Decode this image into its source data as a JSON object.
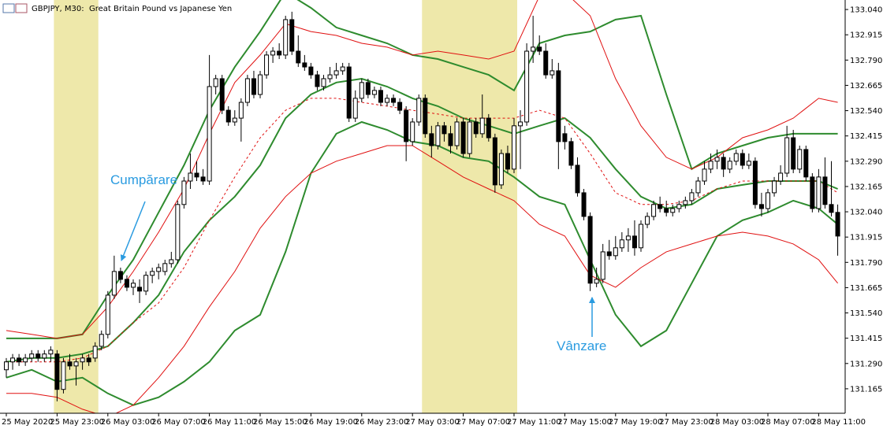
{
  "chart_data": {
    "type": "candlestick",
    "title": "GBPJPY, M30:  Great Britain Pound vs Japanese Yen",
    "categories": [
      "25 May 2020",
      null,
      null,
      null,
      null,
      null,
      null,
      null,
      "25 May 23:00",
      null,
      null,
      null,
      null,
      null,
      null,
      null,
      "26 May 03:00",
      null,
      null,
      null,
      null,
      null,
      null,
      null,
      "26 May 07:00",
      null,
      null,
      null,
      null,
      null,
      null,
      null,
      "26 May 11:00",
      null,
      null,
      null,
      null,
      null,
      null,
      null,
      "26 May 15:00",
      null,
      null,
      null,
      null,
      null,
      null,
      null,
      "26 May 19:00",
      null,
      null,
      null,
      null,
      null,
      null,
      null,
      "26 May 23:00",
      null,
      null,
      null,
      null,
      null,
      null,
      null,
      "27 May 03:00",
      null,
      null,
      null,
      null,
      null,
      null,
      null,
      "27 May 07:00",
      null,
      null,
      null,
      null,
      null,
      null,
      null,
      "27 May 11:00",
      null,
      null,
      null,
      null,
      null,
      null,
      null,
      "27 May 15:00",
      null,
      null,
      null,
      null,
      null,
      null,
      null,
      "27 May 19:00",
      null,
      null,
      null,
      null,
      null,
      null,
      null,
      "27 May 23:00",
      null,
      null,
      null,
      null,
      null,
      null,
      null,
      "28 May 03:00",
      null,
      null,
      null,
      null,
      null,
      null,
      null,
      "28 May 07:00",
      null,
      null,
      null,
      null,
      null,
      null,
      null,
      "28 May 11:00",
      null,
      null,
      null
    ],
    "ohlc": [
      [
        131.259,
        131.317,
        131.22,
        131.298
      ],
      [
        131.298,
        131.337,
        131.259,
        131.317
      ],
      [
        131.317,
        131.337,
        131.278,
        131.298
      ],
      [
        131.298,
        131.337,
        131.278,
        131.317
      ],
      [
        131.317,
        131.356,
        131.298,
        131.337
      ],
      [
        131.337,
        131.356,
        131.298,
        131.317
      ],
      [
        131.317,
        131.356,
        131.298,
        131.337
      ],
      [
        131.337,
        131.375,
        131.298,
        131.356
      ],
      [
        131.337,
        131.356,
        131.103,
        131.162
      ],
      [
        131.162,
        131.317,
        131.142,
        131.298
      ],
      [
        131.298,
        131.337,
        131.259,
        131.278
      ],
      [
        131.278,
        131.317,
        131.181,
        131.298
      ],
      [
        131.298,
        131.337,
        131.259,
        131.317
      ],
      [
        131.317,
        131.337,
        131.278,
        131.298
      ],
      [
        131.317,
        131.395,
        131.298,
        131.375
      ],
      [
        131.375,
        131.453,
        131.356,
        131.434
      ],
      [
        131.434,
        131.648,
        131.414,
        131.628
      ],
      [
        131.628,
        131.823,
        131.609,
        131.745
      ],
      [
        131.745,
        131.764,
        131.687,
        131.706
      ],
      [
        131.706,
        131.726,
        131.648,
        131.667
      ],
      [
        131.667,
        131.706,
        131.628,
        131.687
      ],
      [
        131.667,
        131.706,
        131.589,
        131.648
      ],
      [
        131.648,
        131.745,
        131.628,
        131.726
      ],
      [
        131.726,
        131.764,
        131.687,
        131.745
      ],
      [
        131.745,
        131.784,
        131.706,
        131.764
      ],
      [
        131.745,
        131.803,
        131.726,
        131.784
      ],
      [
        131.784,
        131.842,
        131.764,
        131.803
      ],
      [
        131.803,
        132.095,
        131.784,
        132.076
      ],
      [
        132.076,
        132.212,
        132.056,
        132.192
      ],
      [
        132.192,
        132.328,
        132.153,
        132.231
      ],
      [
        132.231,
        132.29,
        132.192,
        132.212
      ],
      [
        132.212,
        132.251,
        132.173,
        132.192
      ],
      [
        132.192,
        132.815,
        132.173,
        132.659
      ],
      [
        132.659,
        132.717,
        132.62,
        132.698
      ],
      [
        132.698,
        132.717,
        132.523,
        132.542
      ],
      [
        132.542,
        132.562,
        132.465,
        132.484
      ],
      [
        132.484,
        132.542,
        132.465,
        132.503
      ],
      [
        132.503,
        132.601,
        132.387,
        132.581
      ],
      [
        132.581,
        132.717,
        132.562,
        132.698
      ],
      [
        132.698,
        132.737,
        132.601,
        132.62
      ],
      [
        132.62,
        132.737,
        132.601,
        132.717
      ],
      [
        132.717,
        132.834,
        132.698,
        132.815
      ],
      [
        132.815,
        132.854,
        132.776,
        132.834
      ],
      [
        132.834,
        132.873,
        132.795,
        132.815
      ],
      [
        132.815,
        133.009,
        132.795,
        132.99
      ],
      [
        132.99,
        133.029,
        132.815,
        132.834
      ],
      [
        132.834,
        132.912,
        132.756,
        132.776
      ],
      [
        132.776,
        132.815,
        132.737,
        132.756
      ],
      [
        132.756,
        132.776,
        132.698,
        132.717
      ],
      [
        132.717,
        132.737,
        132.64,
        132.659
      ],
      [
        132.659,
        132.717,
        132.64,
        132.698
      ],
      [
        132.698,
        132.756,
        132.679,
        132.717
      ],
      [
        132.717,
        132.776,
        132.698,
        132.737
      ],
      [
        132.737,
        132.776,
        132.717,
        132.756
      ],
      [
        132.756,
        132.776,
        132.484,
        132.503
      ],
      [
        132.503,
        132.64,
        132.484,
        132.601
      ],
      [
        132.601,
        132.698,
        132.581,
        132.679
      ],
      [
        132.679,
        132.698,
        132.601,
        132.62
      ],
      [
        132.62,
        132.659,
        132.601,
        132.64
      ],
      [
        132.64,
        132.659,
        132.562,
        132.581
      ],
      [
        132.581,
        132.62,
        132.562,
        132.601
      ],
      [
        132.601,
        132.62,
        132.562,
        132.581
      ],
      [
        132.581,
        132.601,
        132.523,
        132.542
      ],
      [
        132.542,
        132.562,
        132.29,
        132.387
      ],
      [
        132.387,
        132.503,
        132.367,
        132.484
      ],
      [
        132.484,
        132.62,
        132.465,
        132.601
      ],
      [
        132.601,
        132.62,
        132.406,
        132.426
      ],
      [
        132.426,
        132.465,
        132.309,
        132.367
      ],
      [
        132.367,
        132.484,
        132.348,
        132.465
      ],
      [
        132.465,
        132.484,
        132.387,
        132.426
      ],
      [
        132.426,
        132.465,
        132.328,
        132.367
      ],
      [
        132.367,
        132.503,
        132.348,
        132.484
      ],
      [
        132.484,
        132.503,
        132.309,
        132.328
      ],
      [
        132.328,
        132.503,
        132.309,
        132.484
      ],
      [
        132.484,
        132.503,
        132.406,
        132.426
      ],
      [
        132.426,
        132.62,
        132.406,
        132.503
      ],
      [
        132.503,
        132.523,
        132.387,
        132.406
      ],
      [
        132.406,
        132.426,
        132.134,
        132.173
      ],
      [
        132.173,
        132.348,
        132.153,
        132.328
      ],
      [
        132.328,
        132.367,
        132.231,
        132.251
      ],
      [
        132.251,
        132.503,
        132.231,
        132.465
      ],
      [
        132.465,
        132.542,
        132.251,
        132.484
      ],
      [
        132.484,
        132.873,
        132.465,
        132.834
      ],
      [
        132.834,
        133.009,
        132.776,
        132.854
      ],
      [
        132.854,
        132.912,
        132.815,
        132.834
      ],
      [
        132.834,
        132.873,
        132.698,
        132.717
      ],
      [
        132.717,
        132.795,
        132.698,
        132.737
      ],
      [
        132.737,
        132.776,
        132.251,
        132.387
      ],
      [
        132.426,
        132.465,
        132.348,
        132.387
      ],
      [
        132.387,
        132.406,
        132.251,
        132.27
      ],
      [
        132.27,
        132.309,
        132.115,
        132.134
      ],
      [
        132.134,
        132.153,
        131.998,
        132.017
      ],
      [
        132.017,
        132.037,
        131.648,
        131.687
      ],
      [
        131.687,
        131.764,
        131.667,
        131.706
      ],
      [
        131.706,
        131.881,
        131.687,
        131.842
      ],
      [
        131.842,
        131.901,
        131.803,
        131.823
      ],
      [
        131.823,
        131.92,
        131.803,
        131.862
      ],
      [
        131.862,
        131.939,
        131.842,
        131.901
      ],
      [
        131.901,
        131.959,
        131.842,
        131.92
      ],
      [
        131.92,
        131.998,
        131.823,
        131.862
      ],
      [
        131.862,
        131.998,
        131.842,
        131.978
      ],
      [
        131.978,
        132.037,
        131.959,
        132.017
      ],
      [
        132.017,
        132.095,
        131.998,
        132.076
      ],
      [
        132.076,
        132.115,
        132.037,
        132.056
      ],
      [
        132.056,
        132.095,
        132.017,
        132.037
      ],
      [
        132.037,
        132.076,
        132.017,
        132.056
      ],
      [
        132.056,
        132.095,
        132.037,
        132.076
      ],
      [
        132.076,
        132.115,
        132.056,
        132.095
      ],
      [
        132.095,
        132.153,
        132.076,
        132.134
      ],
      [
        132.134,
        132.212,
        132.115,
        132.192
      ],
      [
        132.192,
        132.29,
        132.173,
        132.251
      ],
      [
        132.251,
        132.328,
        132.231,
        132.29
      ],
      [
        132.29,
        132.348,
        132.251,
        132.309
      ],
      [
        132.309,
        132.328,
        132.212,
        132.251
      ],
      [
        132.251,
        132.309,
        132.231,
        132.29
      ],
      [
        132.29,
        132.348,
        132.27,
        132.328
      ],
      [
        132.328,
        132.348,
        132.251,
        132.27
      ],
      [
        132.27,
        132.328,
        132.251,
        132.29
      ],
      [
        132.29,
        132.309,
        132.056,
        132.076
      ],
      [
        132.076,
        132.134,
        132.017,
        132.056
      ],
      [
        132.056,
        132.153,
        132.037,
        132.134
      ],
      [
        132.134,
        132.212,
        132.115,
        132.192
      ],
      [
        132.192,
        132.27,
        132.173,
        132.231
      ],
      [
        132.231,
        132.465,
        132.212,
        132.406
      ],
      [
        132.406,
        132.445,
        132.231,
        132.251
      ],
      [
        132.251,
        132.367,
        132.231,
        132.348
      ],
      [
        132.348,
        132.367,
        132.192,
        132.212
      ],
      [
        132.212,
        132.231,
        132.037,
        132.056
      ],
      [
        132.056,
        132.251,
        132.037,
        132.212
      ],
      [
        132.212,
        132.309,
        132.056,
        132.076
      ],
      [
        132.076,
        132.29,
        132.017,
        132.037
      ],
      [
        132.037,
        132.076,
        131.823,
        131.92
      ]
    ],
    "up_color": "#ffffff",
    "down_color": "#000000",
    "ylim": [
      131.044,
      133.087
    ],
    "yticks": [
      {
        "value": 133.04,
        "label": "133.040"
      },
      132.915,
      {
        "value": 132.79,
        "label": "132.790"
      },
      132.665,
      {
        "value": 132.54,
        "label": "132.540"
      },
      132.415,
      {
        "value": 132.29,
        "label": "132.290"
      },
      132.165,
      {
        "value": 132.04,
        "label": "132.040"
      },
      131.915,
      {
        "value": 131.79,
        "label": "131.790"
      },
      131.665,
      {
        "value": 131.54,
        "label": "131.540"
      },
      131.415,
      {
        "value": 131.29,
        "label": "131.290"
      },
      131.165
    ],
    "bands_x": [
      0,
      4,
      8,
      12,
      16,
      20,
      24,
      28,
      32,
      36,
      40,
      44,
      48,
      52,
      56,
      60,
      64,
      68,
      72,
      76,
      80,
      84,
      88,
      92,
      96,
      100,
      104,
      108,
      112,
      116,
      120,
      124,
      128,
      131
    ],
    "bands": [
      {
        "color": "#2e8b2e",
        "width": 2,
        "dashed": false,
        "values": [
          131.414,
          131.414,
          131.414,
          131.434,
          131.628,
          131.803,
          132.037,
          132.27,
          132.542,
          132.756,
          132.931,
          133.126,
          133.048,
          132.951,
          132.912,
          132.873,
          132.815,
          132.795,
          132.756,
          132.717,
          132.64,
          132.873,
          132.912,
          132.931,
          132.99,
          133.009,
          132.62,
          132.251,
          132.328,
          132.367,
          132.406,
          132.426,
          132.426,
          132.426
        ]
      },
      {
        "color": "#2e8b2e",
        "width": 2,
        "dashed": false,
        "values": [
          131.298,
          131.317,
          131.317,
          131.337,
          131.375,
          131.492,
          131.628,
          131.842,
          131.998,
          132.115,
          132.27,
          132.503,
          132.62,
          132.679,
          132.698,
          132.659,
          132.601,
          132.562,
          132.503,
          132.465,
          132.426,
          132.465,
          132.503,
          132.406,
          132.251,
          132.115,
          132.056,
          132.076,
          132.153,
          132.173,
          132.192,
          132.192,
          132.192,
          132.153
        ]
      },
      {
        "color": "#2e8b2e",
        "width": 2,
        "dashed": false,
        "values": [
          131.22,
          131.259,
          131.2,
          131.22,
          131.142,
          131.084,
          131.123,
          131.2,
          131.298,
          131.453,
          131.531,
          131.842,
          132.231,
          132.426,
          132.484,
          132.445,
          132.387,
          132.367,
          132.309,
          132.29,
          132.212,
          132.115,
          132.076,
          131.803,
          131.531,
          131.375,
          131.453,
          131.687,
          131.92,
          131.998,
          132.037,
          132.095,
          132.056,
          131.978
        ]
      },
      {
        "color": "#e01010",
        "width": 1,
        "dashed": false,
        "values": [
          131.453,
          131.434,
          131.414,
          131.434,
          131.57,
          131.745,
          131.939,
          132.153,
          132.426,
          132.679,
          132.815,
          132.97,
          132.931,
          132.912,
          132.873,
          132.854,
          132.815,
          132.834,
          132.815,
          132.795,
          132.834,
          133.106,
          133.126,
          133.009,
          132.698,
          132.465,
          132.309,
          132.251,
          132.309,
          132.406,
          132.445,
          132.503,
          132.601,
          132.581
        ]
      },
      {
        "color": "#e01010",
        "width": 1,
        "dashed": true,
        "values": [
          131.298,
          131.298,
          131.298,
          131.317,
          131.375,
          131.492,
          131.589,
          131.764,
          131.998,
          132.212,
          132.406,
          132.542,
          132.601,
          132.601,
          132.581,
          132.562,
          132.542,
          132.523,
          132.503,
          132.503,
          132.503,
          132.542,
          132.503,
          132.328,
          132.134,
          132.076,
          132.076,
          132.095,
          132.153,
          132.192,
          132.192,
          132.192,
          132.192,
          132.134
        ]
      },
      {
        "color": "#e01010",
        "width": 1,
        "dashed": false,
        "values": [
          131.142,
          131.142,
          131.123,
          131.064,
          131.025,
          131.084,
          131.22,
          131.375,
          131.57,
          131.745,
          131.959,
          132.115,
          132.231,
          132.29,
          132.328,
          132.367,
          132.367,
          132.29,
          132.212,
          132.153,
          132.095,
          131.978,
          131.92,
          131.726,
          131.667,
          131.764,
          131.842,
          131.881,
          131.92,
          131.939,
          131.92,
          131.881,
          131.803,
          131.687
        ]
      }
    ],
    "highlights": [
      {
        "from": 8,
        "to": 14
      },
      {
        "from": 66,
        "to": 80
      }
    ],
    "highlight_color": "#eee8aa",
    "annotations": [
      {
        "text": "Cumpărare",
        "color": "#2a9be0"
      },
      {
        "text": "Vânzare",
        "color": "#2a9be0"
      }
    ]
  }
}
